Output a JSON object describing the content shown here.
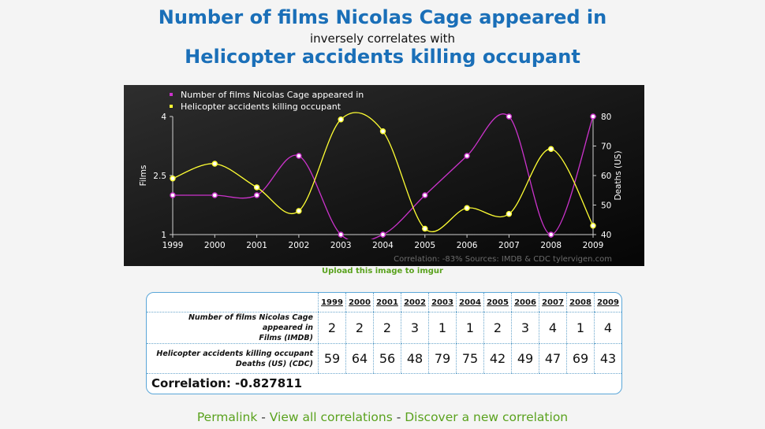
{
  "header": {
    "title_top": "Number of films Nicolas Cage appeared in",
    "subtitle": "inversely correlates with",
    "title_bottom": "Helicopter accidents killing occupant"
  },
  "upload_link": "Upload this image to imgur",
  "chart_data": {
    "type": "line",
    "x": [
      "1999",
      "2000",
      "2001",
      "2002",
      "2003",
      "2004",
      "2005",
      "2006",
      "2007",
      "2008",
      "2009"
    ],
    "series": [
      {
        "name": "Number of films Nicolas Cage appeared in",
        "axis": "left",
        "color": "#cc33cc",
        "values": [
          2,
          2,
          2,
          3,
          1,
          1,
          2,
          3,
          4,
          1,
          4
        ]
      },
      {
        "name": "Helicopter accidents killing occupant",
        "axis": "right",
        "color": "#ffff33",
        "values": [
          59,
          64,
          56,
          48,
          79,
          75,
          42,
          49,
          47,
          69,
          43
        ]
      }
    ],
    "ylabel_left": "Films",
    "ylim_left": [
      1,
      4
    ],
    "yticks_left": [
      "1",
      "2.5",
      "4"
    ],
    "ylabel_right": "Deaths (US)",
    "ylim_right": [
      40,
      80
    ],
    "yticks_right": [
      "40",
      "50",
      "60",
      "70",
      "80"
    ],
    "legend_position": "top-left",
    "footer": "Correlation: -83%   Sources: IMDB & CDC   tylervigen.com"
  },
  "table": {
    "years": [
      "1999",
      "2000",
      "2001",
      "2002",
      "2003",
      "2004",
      "2005",
      "2006",
      "2007",
      "2008",
      "2009"
    ],
    "rows": [
      {
        "label_line1": "Number of films Nicolas Cage appeared in",
        "label_line2": "Films (IMDB)",
        "values": [
          "2",
          "2",
          "2",
          "3",
          "1",
          "1",
          "2",
          "3",
          "4",
          "1",
          "4"
        ]
      },
      {
        "label_line1": "Helicopter accidents killing occupant",
        "label_line2": "Deaths (US) (CDC)",
        "values": [
          "59",
          "64",
          "56",
          "48",
          "79",
          "75",
          "42",
          "49",
          "47",
          "69",
          "43"
        ]
      }
    ],
    "correlation": "Correlation: -0.827811"
  },
  "footer_links": {
    "permalink": "Permalink",
    "sep1": " - ",
    "view_all": "View all correlations",
    "sep2": " - ",
    "discover": "Discover a new correlation"
  }
}
